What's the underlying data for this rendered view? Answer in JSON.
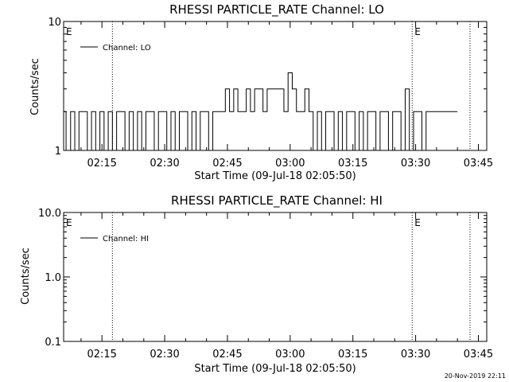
{
  "chart_data": [
    {
      "type": "line",
      "title": "RHESSI PARTICLE_RATE Channel: LO",
      "xlabel": "Start Time (09-Jul-18 02:05:50)",
      "ylabel": "Counts/sec",
      "yscale": "log",
      "ylim": [
        1,
        10
      ],
      "ytick_labels": [
        "1",
        "10"
      ],
      "x_tick_labels": [
        "02:15",
        "02:30",
        "02:45",
        "03:00",
        "03:15",
        "03:30",
        "03:45"
      ],
      "xlim": [
        "02:05:50",
        "03:47:00"
      ],
      "legend": {
        "text": "Channel: LO",
        "placement": "top-left"
      },
      "event_markers": [
        {
          "time": "02:05:50",
          "label": "E"
        },
        {
          "time": "02:17:30",
          "label": ""
        },
        {
          "time": "03:29:10",
          "label": "E"
        },
        {
          "time": "03:43:00",
          "label": ""
        }
      ],
      "series": [
        {
          "x": [
            "02:05:50",
            "02:07:00",
            "02:08:00",
            "02:09:00",
            "02:10:00",
            "02:11:00",
            "02:12:00",
            "02:13:00",
            "02:14:00",
            "02:15:00",
            "02:16:00",
            "02:17:00",
            "02:18:00",
            "02:19:00",
            "02:20:00",
            "02:21:00",
            "02:22:00",
            "02:23:00",
            "02:24:00",
            "02:25:00",
            "02:26:00",
            "02:27:00",
            "02:28:00",
            "02:29:00",
            "02:30:00",
            "02:31:00",
            "02:32:00",
            "02:33:00",
            "02:34:00",
            "02:35:00",
            "02:36:00",
            "02:37:00",
            "02:38:00",
            "02:39:00",
            "02:40:00",
            "02:41:00",
            "02:42:00",
            "02:43:00",
            "02:44:00",
            "02:45:00",
            "02:46:00",
            "02:47:00",
            "02:48:00",
            "02:49:00",
            "02:50:00",
            "02:51:00",
            "02:52:00",
            "02:53:00",
            "02:54:00",
            "02:55:00",
            "02:56:00",
            "02:57:00",
            "02:58:00",
            "02:59:00",
            "03:00:00",
            "03:01:00",
            "03:02:00",
            "03:03:00",
            "03:04:00",
            "03:05:00",
            "03:06:00",
            "03:07:00",
            "03:08:00",
            "03:09:00",
            "03:10:00",
            "03:11:00",
            "03:12:00",
            "03:13:00",
            "03:14:00",
            "03:15:00",
            "03:16:00",
            "03:17:00",
            "03:18:00",
            "03:19:00",
            "03:20:00",
            "03:21:00",
            "03:22:00",
            "03:23:00",
            "03:24:00",
            "03:25:00",
            "03:26:00",
            "03:27:00",
            "03:28:00",
            "03:29:00",
            "03:30:00",
            "03:31:00",
            "03:32:00",
            "03:33:00",
            "03:34:00",
            "03:35:00",
            "03:36:00",
            "03:37:00",
            "03:38:00",
            "03:39:00",
            "03:40:00"
          ],
          "y": [
            2,
            1,
            2,
            1,
            2,
            2,
            1,
            2,
            1,
            2,
            1,
            2,
            1,
            2,
            2,
            1,
            2,
            1,
            2,
            1,
            2,
            2,
            1,
            2,
            2,
            1,
            2,
            1,
            2,
            2,
            1,
            2,
            1,
            2,
            2,
            1,
            2,
            2,
            2,
            3,
            2,
            3,
            2,
            2,
            3,
            2,
            3,
            3,
            2,
            3,
            3,
            3,
            3,
            2,
            4,
            3,
            2,
            2,
            3,
            2,
            1,
            2,
            1,
            2,
            2,
            1,
            2,
            1,
            2,
            2,
            1,
            2,
            1,
            2,
            2,
            1,
            2,
            2,
            1,
            2,
            2,
            1,
            3,
            1,
            2,
            2,
            1,
            2,
            2,
            2,
            2,
            2,
            2,
            2,
            2
          ]
        }
      ]
    },
    {
      "type": "line",
      "title": "RHESSI PARTICLE_RATE Channel: HI",
      "xlabel": "Start Time (09-Jul-18 02:05:50)",
      "ylabel": "Counts/sec",
      "yscale": "log",
      "ylim": [
        0.1,
        10
      ],
      "ytick_labels": [
        "0.1",
        "1.0",
        "10.0"
      ],
      "x_tick_labels": [
        "02:15",
        "02:30",
        "02:45",
        "03:00",
        "03:15",
        "03:30",
        "03:45"
      ],
      "xlim": [
        "02:05:50",
        "03:47:00"
      ],
      "legend": {
        "text": "Channel: HI",
        "placement": "top-left"
      },
      "event_markers": [
        {
          "time": "02:05:50",
          "label": "E"
        },
        {
          "time": "02:17:30",
          "label": ""
        },
        {
          "time": "03:29:10",
          "label": "E"
        },
        {
          "time": "03:43:00",
          "label": ""
        }
      ],
      "series": [
        {
          "x": [],
          "y": []
        }
      ]
    }
  ],
  "footer": {
    "timestamp": "20-Nov-2019 22:11"
  }
}
